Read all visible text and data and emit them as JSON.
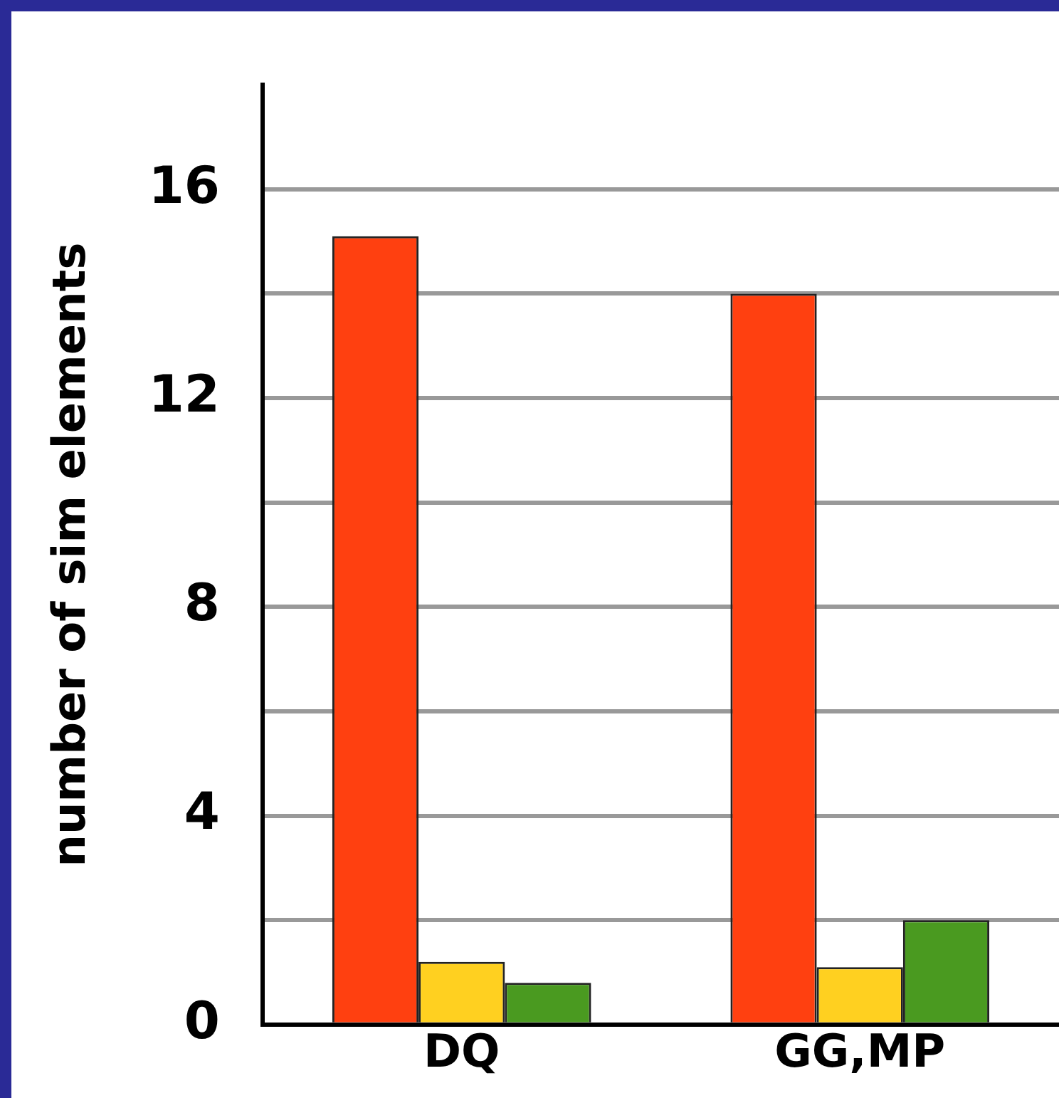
{
  "chart_data": {
    "type": "bar",
    "ylabel": "number of sim elements",
    "categories": [
      "DQ",
      "GG,MP"
    ],
    "series": [
      {
        "color": "#ff4010",
        "values": [
          15.1,
          14
        ]
      },
      {
        "color": "#ffd020",
        "values": [
          1.2,
          1.1
        ]
      },
      {
        "color": "#4a9a20",
        "values": [
          0.8,
          2
        ]
      }
    ],
    "ylim": [
      0,
      18
    ],
    "yticks": [
      0,
      {
        "value": 2,
        "label": null
      },
      4,
      {
        "value": 6,
        "label": null
      },
      8,
      {
        "value": 10,
        "label": null
      },
      12,
      {
        "value": 14,
        "label": null
      },
      16
    ],
    "grid": "y",
    "legend": false
  }
}
